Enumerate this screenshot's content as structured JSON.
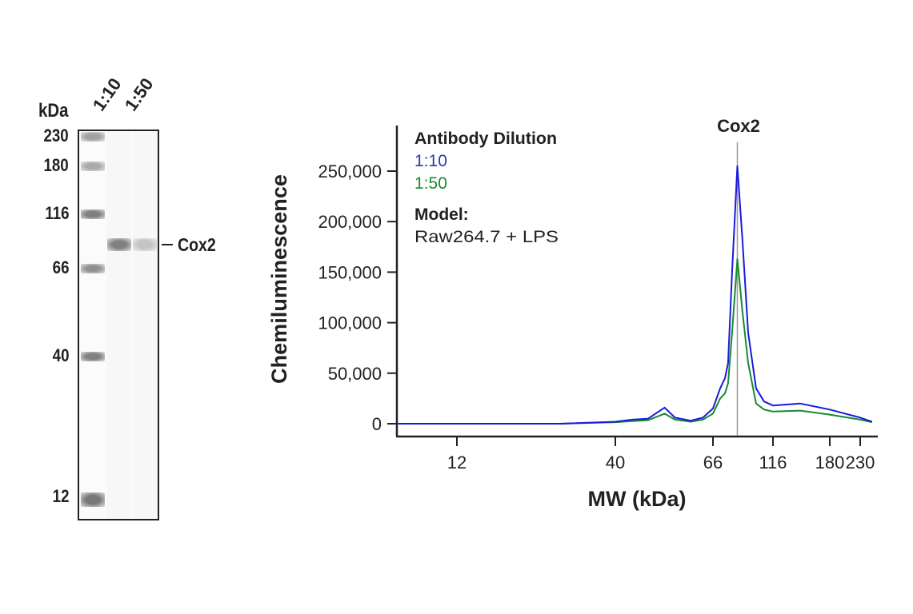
{
  "gel": {
    "unit_label": "kDa",
    "lane_labels": [
      "1:10",
      "1:50"
    ],
    "ladder": [
      {
        "label": "230",
        "kda": 230,
        "intensity": 0.55
      },
      {
        "label": "180",
        "kda": 180,
        "intensity": 0.5
      },
      {
        "label": "116",
        "kda": 116,
        "intensity": 0.75
      },
      {
        "label": "66",
        "kda": 66,
        "intensity": 0.65
      },
      {
        "label": "40",
        "kda": 40,
        "intensity": 0.75
      },
      {
        "label": "12",
        "kda": 12,
        "intensity": 0.8
      }
    ],
    "sample_bands": [
      {
        "lane": "1:10",
        "kda": 83,
        "intensity": 0.75
      },
      {
        "lane": "1:50",
        "kda": 83,
        "intensity": 0.35
      }
    ],
    "target_label": "Cox2"
  },
  "chart_data": {
    "type": "line",
    "title": "",
    "xlabel": "MW (kDa)",
    "ylabel": "Chemiluminescence",
    "x_ticks": [
      12,
      40,
      66,
      116,
      180,
      230
    ],
    "y_ticks": [
      0,
      50000,
      100000,
      150000,
      200000,
      250000
    ],
    "y_tick_labels": [
      "0",
      "50,000",
      "100,000",
      "150,000",
      "200,000",
      "250,000"
    ],
    "ylim": [
      0,
      290000
    ],
    "grid": false,
    "peak_marker": {
      "label": "Cox2",
      "kda": 83
    },
    "legend": {
      "title": "Antibody Dilution",
      "placement": "top-left",
      "model_title": "Model:",
      "model_value": "Raw264.7 + LPS"
    },
    "series": [
      {
        "name": "1:10",
        "color": "#1a1adc",
        "points": [
          [
            7.6,
            0
          ],
          [
            26.3,
            0
          ],
          [
            40,
            2000
          ],
          [
            43.6,
            4000
          ],
          [
            47.3,
            5000
          ],
          [
            51.5,
            16000
          ],
          [
            54.3,
            6000
          ],
          [
            58.9,
            3000
          ],
          [
            62.7,
            6000
          ],
          [
            66,
            15000
          ],
          [
            70.6,
            35000
          ],
          [
            73.9,
            45000
          ],
          [
            76.1,
            60000
          ],
          [
            79,
            150000
          ],
          [
            83,
            255000
          ],
          [
            87.2,
            180000
          ],
          [
            91.9,
            90000
          ],
          [
            99,
            35000
          ],
          [
            106.7,
            22000
          ],
          [
            116,
            18000
          ],
          [
            143,
            20000
          ],
          [
            180,
            14000
          ],
          [
            230,
            6000
          ],
          [
            253,
            2000
          ]
        ]
      },
      {
        "name": "1:50",
        "color": "#178a2e",
        "points": [
          [
            7.6,
            0
          ],
          [
            26.3,
            0
          ],
          [
            40,
            1500
          ],
          [
            43.6,
            2500
          ],
          [
            47.3,
            3500
          ],
          [
            51.5,
            10000
          ],
          [
            54.3,
            4000
          ],
          [
            58.9,
            2000
          ],
          [
            62.7,
            4000
          ],
          [
            66,
            10000
          ],
          [
            70.6,
            25000
          ],
          [
            73.9,
            30000
          ],
          [
            76.1,
            40000
          ],
          [
            79,
            90000
          ],
          [
            83,
            163000
          ],
          [
            87.2,
            110000
          ],
          [
            91.9,
            60000
          ],
          [
            99,
            20000
          ],
          [
            106.7,
            14000
          ],
          [
            116,
            12000
          ],
          [
            143,
            13000
          ],
          [
            180,
            9000
          ],
          [
            230,
            4000
          ],
          [
            253,
            1500
          ]
        ]
      }
    ]
  }
}
